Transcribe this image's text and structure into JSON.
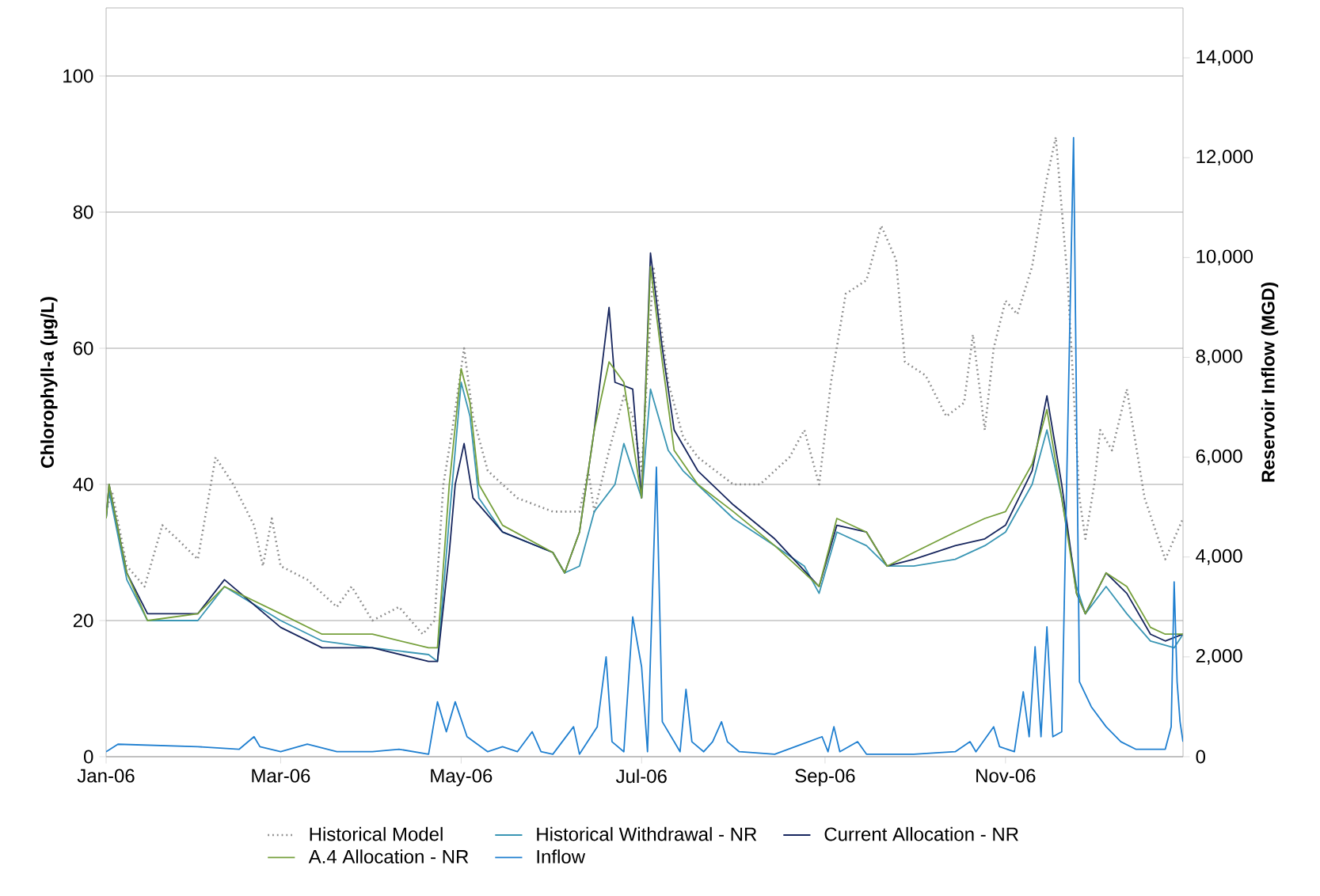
{
  "chart_data": {
    "type": "line",
    "ylabel": "Chlorophyll-a (µg/L)",
    "y2label": "Reservoir Inflow (MGD)",
    "xlim": [
      "2006-01-01",
      "2006-12-31"
    ],
    "xticks": [
      {
        "value": "2006-01-01",
        "label": "Jan-06"
      },
      {
        "value": "2006-03-01",
        "label": "Mar-06"
      },
      {
        "value": "2006-05-01",
        "label": "May-06"
      },
      {
        "value": "2006-07-01",
        "label": "Jul-06"
      },
      {
        "value": "2006-09-01",
        "label": "Sep-06"
      },
      {
        "value": "2006-11-01",
        "label": "Nov-06"
      }
    ],
    "ylim": [
      0,
      110
    ],
    "yticks": [
      0,
      20,
      40,
      60,
      80,
      100
    ],
    "y2lim": [
      0,
      15000
    ],
    "y2ticks": [
      0,
      {
        "value": 2000,
        "label": "2,000"
      },
      {
        "value": 4000,
        "label": "4,000"
      },
      {
        "value": 6000,
        "label": "6,000"
      },
      {
        "value": 8000,
        "label": "8,000"
      },
      {
        "value": 10000,
        "label": "10,000"
      },
      {
        "value": 12000,
        "label": "12,000"
      },
      {
        "value": 14000,
        "label": "14,000"
      }
    ],
    "grid": "y",
    "legend": "bottom",
    "series": [
      {
        "name": "Historical Model",
        "color": "#8c8c8c",
        "line_style": "dotted",
        "x": [
          "2006-01-01",
          "2006-01-03",
          "2006-01-08",
          "2006-01-14",
          "2006-01-20",
          "2006-01-25",
          "2006-02-01",
          "2006-02-03",
          "2006-02-07",
          "2006-02-13",
          "2006-02-20",
          "2006-02-23",
          "2006-02-26",
          "2006-03-01",
          "2006-03-10",
          "2006-03-20",
          "2006-03-25",
          "2006-04-01",
          "2006-04-10",
          "2006-04-18",
          "2006-04-22",
          "2006-04-25",
          "2006-04-28",
          "2006-05-02",
          "2006-05-05",
          "2006-05-10",
          "2006-05-20",
          "2006-06-01",
          "2006-06-10",
          "2006-06-13",
          "2006-06-15",
          "2006-06-20",
          "2006-06-25",
          "2006-06-28",
          "2006-07-01",
          "2006-07-05",
          "2006-07-10",
          "2006-07-15",
          "2006-07-20",
          "2006-08-01",
          "2006-08-10",
          "2006-08-20",
          "2006-08-25",
          "2006-08-30",
          "2006-09-03",
          "2006-09-08",
          "2006-09-15",
          "2006-09-20",
          "2006-09-25",
          "2006-09-28",
          "2006-10-05",
          "2006-10-12",
          "2006-10-18",
          "2006-10-21",
          "2006-10-25",
          "2006-10-28",
          "2006-11-01",
          "2006-11-05",
          "2006-11-10",
          "2006-11-15",
          "2006-11-18",
          "2006-11-22",
          "2006-11-26",
          "2006-11-28",
          "2006-12-01",
          "2006-12-03",
          "2006-12-07",
          "2006-12-12",
          "2006-12-18",
          "2006-12-25",
          "2006-12-31"
        ],
        "values": [
          36,
          39,
          28,
          25,
          34,
          32,
          29,
          34,
          44,
          40,
          34,
          28,
          35,
          28,
          26,
          22,
          25,
          20,
          22,
          18,
          20,
          40,
          48,
          60,
          50,
          42,
          38,
          36,
          36,
          42,
          36,
          45,
          53,
          50,
          42,
          72,
          55,
          47,
          44,
          40,
          40,
          44,
          48,
          40,
          55,
          68,
          70,
          78,
          73,
          58,
          56,
          50,
          52,
          62,
          48,
          60,
          67,
          65,
          72,
          85,
          91,
          70,
          38,
          32,
          40,
          48,
          45,
          54,
          38,
          29,
          35
        ]
      },
      {
        "name": "Historical Withdrawal - NR",
        "color": "#3a96b4",
        "line_style": "solid",
        "x": [
          "2006-01-01",
          "2006-01-02",
          "2006-01-08",
          "2006-01-15",
          "2006-02-01",
          "2006-02-10",
          "2006-03-01",
          "2006-03-15",
          "2006-04-01",
          "2006-04-20",
          "2006-04-23",
          "2006-04-27",
          "2006-05-01",
          "2006-05-04",
          "2006-05-07",
          "2006-05-15",
          "2006-06-01",
          "2006-06-05",
          "2006-06-10",
          "2006-06-15",
          "2006-06-22",
          "2006-06-25",
          "2006-07-01",
          "2006-07-04",
          "2006-07-10",
          "2006-07-15",
          "2006-08-01",
          "2006-08-15",
          "2006-08-25",
          "2006-08-30",
          "2006-09-05",
          "2006-09-15",
          "2006-09-22",
          "2006-10-01",
          "2006-10-15",
          "2006-10-25",
          "2006-11-01",
          "2006-11-10",
          "2006-11-15",
          "2006-11-20",
          "2006-11-25",
          "2006-11-28",
          "2006-12-05",
          "2006-12-12",
          "2006-12-20",
          "2006-12-28",
          "2006-12-31"
        ],
        "values": [
          35,
          39,
          26,
          20,
          20,
          25,
          20,
          17,
          16,
          15,
          14,
          35,
          55,
          50,
          38,
          33,
          30,
          27,
          28,
          36,
          40,
          46,
          38,
          54,
          45,
          42,
          35,
          31,
          28,
          24,
          33,
          31,
          28,
          28,
          29,
          31,
          33,
          40,
          48,
          38,
          25,
          21,
          25,
          21,
          17,
          16,
          18
        ]
      },
      {
        "name": "Current Allocation - NR",
        "color": "#17265e",
        "line_style": "solid",
        "x": [
          "2006-01-01",
          "2006-01-02",
          "2006-01-08",
          "2006-01-15",
          "2006-02-01",
          "2006-02-10",
          "2006-03-01",
          "2006-03-15",
          "2006-04-01",
          "2006-04-20",
          "2006-04-23",
          "2006-04-27",
          "2006-04-29",
          "2006-05-02",
          "2006-05-05",
          "2006-05-15",
          "2006-06-01",
          "2006-06-05",
          "2006-06-10",
          "2006-06-15",
          "2006-06-20",
          "2006-06-22",
          "2006-06-28",
          "2006-07-01",
          "2006-07-04",
          "2006-07-08",
          "2006-07-12",
          "2006-07-20",
          "2006-08-01",
          "2006-08-15",
          "2006-08-30",
          "2006-09-05",
          "2006-09-15",
          "2006-09-22",
          "2006-10-01",
          "2006-10-15",
          "2006-10-25",
          "2006-11-01",
          "2006-11-10",
          "2006-11-15",
          "2006-11-20",
          "2006-11-25",
          "2006-11-28",
          "2006-12-05",
          "2006-12-12",
          "2006-12-20",
          "2006-12-25",
          "2006-12-31"
        ],
        "values": [
          35,
          40,
          27,
          21,
          21,
          26,
          19,
          16,
          16,
          14,
          14,
          30,
          40,
          46,
          38,
          33,
          30,
          27,
          33,
          48,
          66,
          55,
          54,
          38,
          74,
          60,
          48,
          42,
          37,
          32,
          25,
          34,
          33,
          28,
          29,
          31,
          32,
          34,
          42,
          53,
          40,
          24,
          21,
          27,
          24,
          18,
          17,
          18
        ]
      },
      {
        "name": "A.4 Allocation - NR",
        "color": "#76a03c",
        "line_style": "solid",
        "x": [
          "2006-01-01",
          "2006-01-02",
          "2006-01-08",
          "2006-01-15",
          "2006-02-01",
          "2006-02-10",
          "2006-03-01",
          "2006-03-15",
          "2006-04-01",
          "2006-04-20",
          "2006-04-23",
          "2006-04-27",
          "2006-05-01",
          "2006-05-04",
          "2006-05-07",
          "2006-05-15",
          "2006-06-01",
          "2006-06-05",
          "2006-06-10",
          "2006-06-15",
          "2006-06-20",
          "2006-06-25",
          "2006-07-01",
          "2006-07-04",
          "2006-07-08",
          "2006-07-12",
          "2006-07-20",
          "2006-08-01",
          "2006-08-15",
          "2006-08-30",
          "2006-09-05",
          "2006-09-15",
          "2006-09-22",
          "2006-10-01",
          "2006-10-15",
          "2006-10-25",
          "2006-11-01",
          "2006-11-10",
          "2006-11-15",
          "2006-11-20",
          "2006-11-25",
          "2006-11-28",
          "2006-12-05",
          "2006-12-12",
          "2006-12-20",
          "2006-12-25",
          "2006-12-31"
        ],
        "values": [
          35,
          40,
          27,
          20,
          21,
          25,
          21,
          18,
          18,
          16,
          16,
          40,
          57,
          52,
          40,
          34,
          30,
          27,
          33,
          48,
          58,
          55,
          38,
          72,
          58,
          45,
          40,
          36,
          31,
          25,
          35,
          33,
          28,
          30,
          33,
          35,
          36,
          43,
          51,
          38,
          24,
          21,
          27,
          25,
          19,
          18,
          18
        ]
      },
      {
        "name": "Inflow",
        "color": "#1f7fd0",
        "line_style": "solid",
        "axis": "y2",
        "x": [
          "2006-01-01",
          "2006-01-05",
          "2006-02-01",
          "2006-02-15",
          "2006-02-20",
          "2006-02-22",
          "2006-03-01",
          "2006-03-10",
          "2006-03-20",
          "2006-04-01",
          "2006-04-10",
          "2006-04-20",
          "2006-04-23",
          "2006-04-26",
          "2006-04-29",
          "2006-05-03",
          "2006-05-10",
          "2006-05-15",
          "2006-05-20",
          "2006-05-25",
          "2006-05-28",
          "2006-06-01",
          "2006-06-08",
          "2006-06-10",
          "2006-06-16",
          "2006-06-19",
          "2006-06-21",
          "2006-06-25",
          "2006-06-28",
          "2006-07-01",
          "2006-07-03",
          "2006-07-06",
          "2006-07-08",
          "2006-07-12",
          "2006-07-14",
          "2006-07-16",
          "2006-07-18",
          "2006-07-22",
          "2006-07-25",
          "2006-07-28",
          "2006-07-30",
          "2006-08-03",
          "2006-08-15",
          "2006-08-31",
          "2006-09-02",
          "2006-09-04",
          "2006-09-06",
          "2006-09-12",
          "2006-09-15",
          "2006-10-01",
          "2006-10-15",
          "2006-10-20",
          "2006-10-22",
          "2006-10-28",
          "2006-10-30",
          "2006-11-04",
          "2006-11-07",
          "2006-11-09",
          "2006-11-11",
          "2006-11-13",
          "2006-11-15",
          "2006-11-17",
          "2006-11-20",
          "2006-11-24",
          "2006-11-26",
          "2006-11-30",
          "2006-12-05",
          "2006-12-10",
          "2006-12-15",
          "2006-12-25",
          "2006-12-27",
          "2006-12-28",
          "2006-12-29",
          "2006-12-30",
          "2006-12-31"
        ],
        "values": [
          100,
          250,
          200,
          150,
          400,
          200,
          100,
          250,
          100,
          100,
          150,
          50,
          1100,
          500,
          1100,
          400,
          100,
          200,
          100,
          500,
          100,
          50,
          600,
          50,
          600,
          2000,
          300,
          100,
          2800,
          1800,
          100,
          5800,
          700,
          300,
          100,
          1350,
          300,
          100,
          300,
          700,
          300,
          100,
          50,
          400,
          100,
          600,
          100,
          300,
          50,
          50,
          100,
          300,
          100,
          600,
          200,
          100,
          1300,
          400,
          2200,
          400,
          2600,
          400,
          500,
          12400,
          1500,
          1000,
          600,
          300,
          150,
          150,
          600,
          3500,
          1500,
          700,
          300
        ]
      }
    ]
  }
}
